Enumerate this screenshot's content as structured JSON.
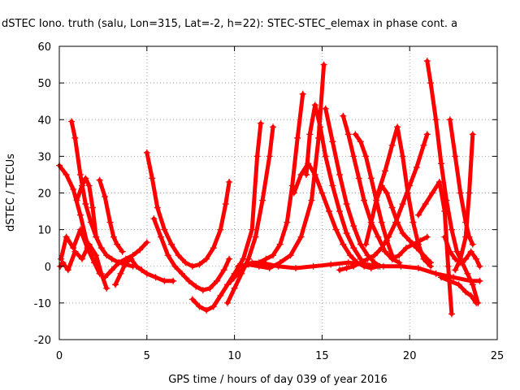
{
  "chart_data": {
    "type": "scatter",
    "title": "dSTEC Iono. truth (salu, Lon=315, Lat=-2, h=22): STEC-STEC_elemax in phase cont. a",
    "xlabel": "GPS time / hours of day 039 of year 2016",
    "ylabel": "dSTEC  / TECUs",
    "xlim": [
      0,
      25
    ],
    "ylim": [
      -20,
      60
    ],
    "x_ticks": [
      "0",
      "5",
      "10",
      "15",
      "20",
      "25"
    ],
    "y_ticks": [
      "-20",
      "-10",
      "0",
      "10",
      "20",
      "30",
      "40",
      "50",
      "60"
    ],
    "grid": true,
    "marker": "+",
    "color": "#ff0000",
    "series": [
      {
        "x": [
          0.0,
          0.4,
          0.8,
          1.2,
          1.6,
          2.0
        ],
        "y": [
          27.5,
          25,
          21,
          14,
          6,
          1
        ]
      },
      {
        "x": [
          0.05,
          0.2,
          0.5,
          0.9,
          1.3,
          1.7,
          2.1,
          2.4,
          2.7
        ],
        "y": [
          0,
          1,
          -1,
          4,
          2,
          6,
          3,
          -2,
          -6
        ]
      },
      {
        "x": [
          0.1,
          0.4,
          0.8,
          1.2,
          1.6,
          2.0,
          2.3
        ],
        "y": [
          2,
          8,
          5,
          10,
          5,
          1,
          -2
        ]
      },
      {
        "x": [
          0.7,
          0.9,
          1.2,
          1.5,
          1.8,
          2.1,
          2.4,
          2.7,
          3.0,
          3.4,
          3.8,
          4.2
        ],
        "y": [
          39.5,
          35,
          25,
          17,
          12,
          8,
          5,
          3,
          2,
          1,
          0.5,
          0
        ]
      },
      {
        "x": [
          1.0,
          1.3,
          1.5,
          1.7,
          1.9,
          2.1
        ],
        "y": [
          18,
          22,
          24,
          22,
          16,
          8
        ]
      },
      {
        "x": [
          2.3,
          2.6,
          2.9,
          3.1,
          3.3,
          3.6
        ],
        "y": [
          23.5,
          19,
          12,
          8,
          6,
          4
        ]
      },
      {
        "x": [
          2.6,
          3.0,
          3.4,
          3.8,
          4.2,
          4.6,
          5.0
        ],
        "y": [
          -3,
          -1,
          1,
          2,
          3,
          4.5,
          6.5
        ]
      },
      {
        "x": [
          3.2,
          3.5,
          3.8,
          4.1,
          4.4,
          4.7,
          5.0,
          5.5,
          6.0,
          6.5
        ],
        "y": [
          -5,
          -2,
          1,
          2,
          0,
          -1,
          -2,
          -3,
          -4,
          -4
        ]
      },
      {
        "x": [
          5.0,
          5.3,
          5.6,
          6.0,
          6.4,
          6.8,
          7.2,
          7.6,
          8.0,
          8.4,
          8.8,
          9.2,
          9.5,
          9.7
        ],
        "y": [
          31,
          24,
          16,
          10,
          6,
          3,
          1,
          0,
          0.5,
          2,
          5,
          10,
          17,
          23
        ]
      },
      {
        "x": [
          5.4,
          5.8,
          6.2,
          6.6,
          7.0,
          7.4,
          7.8,
          8.2,
          8.6,
          9.0,
          9.4,
          9.7
        ],
        "y": [
          13,
          8,
          3,
          0,
          -2,
          -4,
          -5.5,
          -6.5,
          -6,
          -4,
          -1,
          2
        ]
      },
      {
        "x": [
          7.6,
          8.0,
          8.4,
          8.8,
          9.2,
          9.6,
          10.0,
          10.5,
          11.0,
          11.3,
          11.5
        ],
        "y": [
          -9,
          -11,
          -12,
          -11,
          -8,
          -5,
          -2,
          2,
          10,
          30,
          39
        ]
      },
      {
        "x": [
          9.6,
          10.0,
          10.4,
          10.8,
          11.2,
          11.6,
          12.0,
          12.2
        ],
        "y": [
          -10,
          -6,
          -2,
          2,
          8,
          18,
          30,
          38
        ]
      },
      {
        "x": [
          9.8,
          10.2,
          10.6,
          11.0,
          11.4,
          11.8,
          12.2,
          12.6,
          13.0,
          13.3,
          13.6,
          13.9
        ],
        "y": [
          -4,
          -2,
          0,
          1,
          1,
          2,
          3,
          6,
          12,
          22,
          35,
          47
        ]
      },
      {
        "x": [
          10.2,
          10.8,
          11.4,
          12.0,
          12.6,
          13.2,
          13.8,
          14.4,
          14.8,
          15.1
        ],
        "y": [
          0,
          0.5,
          0,
          -0.5,
          1,
          3,
          8,
          18,
          35,
          55
        ]
      },
      {
        "x": [
          11.5,
          12.5,
          13.5,
          14.5,
          15.5,
          16.5,
          17.5,
          18.5,
          19.5,
          20.5,
          21.5,
          22.5,
          23.5,
          24.0
        ],
        "y": [
          1,
          0,
          -0.5,
          0,
          0.5,
          1,
          0.5,
          0,
          0,
          -0.5,
          -2,
          -3,
          -4,
          -4
        ]
      },
      {
        "x": [
          13.4,
          13.8,
          14.2,
          14.6,
          15.0,
          15.4,
          15.8,
          16.2,
          16.6,
          17.0,
          17.4,
          17.8,
          18.2
        ],
        "y": [
          20,
          25,
          28,
          25,
          20,
          15,
          10,
          6,
          3,
          1,
          0,
          -0.5,
          0
        ]
      },
      {
        "x": [
          14.1,
          14.3,
          14.6,
          14.9,
          15.2,
          15.6,
          16.0,
          16.4,
          16.8,
          17.2
        ],
        "y": [
          25,
          36,
          44,
          38,
          30,
          22,
          15,
          9,
          5,
          2
        ]
      },
      {
        "x": [
          15.2,
          15.6,
          16.0,
          16.4,
          16.8,
          17.2,
          17.6,
          18.0,
          18.3
        ],
        "y": [
          43,
          34,
          25,
          17,
          11,
          6,
          3,
          1,
          0
        ]
      },
      {
        "x": [
          16.2,
          16.5,
          16.8,
          17.1,
          17.4,
          17.8,
          18.2,
          18.6,
          19.0,
          19.4
        ],
        "y": [
          41,
          36,
          30,
          24,
          18,
          12,
          8,
          4,
          2,
          1
        ]
      },
      {
        "x": [
          16.0,
          16.4,
          16.8,
          17.2,
          17.6,
          18.0,
          18.4,
          18.8,
          19.2,
          19.6,
          20.0,
          20.4,
          20.8,
          21.0
        ],
        "y": [
          -1,
          -0.5,
          0,
          1,
          2,
          3,
          5,
          8,
          12,
          17,
          22,
          27,
          33,
          36
        ]
      },
      {
        "x": [
          16.9,
          17.2,
          17.5,
          17.8,
          18.1,
          18.4,
          18.7,
          19.0
        ],
        "y": [
          36,
          34,
          30,
          24,
          18,
          12,
          7,
          3
        ]
      },
      {
        "x": [
          18.2,
          18.6,
          19.0,
          19.3,
          19.6,
          19.9,
          20.2,
          20.5,
          20.8,
          21.2
        ],
        "y": [
          20,
          26,
          33,
          38,
          30,
          20,
          12,
          6,
          2,
          0
        ]
      },
      {
        "x": [
          17.5,
          17.8,
          18.1,
          18.4,
          18.7,
          19.0,
          19.3,
          19.6,
          20.0,
          20.4,
          20.8,
          21.2
        ],
        "y": [
          6,
          12,
          18,
          22,
          20,
          16,
          12,
          9,
          7,
          5,
          3,
          1
        ]
      },
      {
        "x": [
          19.0,
          19.4,
          19.8,
          20.2,
          20.6,
          21.0
        ],
        "y": [
          2,
          3,
          5,
          6,
          7,
          8
        ]
      },
      {
        "x": [
          21.0,
          21.2,
          21.5,
          21.8,
          22.1,
          22.4,
          22.7,
          23.0,
          23.3,
          23.6,
          23.9
        ],
        "y": [
          56,
          50,
          40,
          28,
          18,
          10,
          4,
          1,
          -2,
          -5,
          -10
        ]
      },
      {
        "x": [
          20.5,
          20.9,
          21.3,
          21.7,
          22.0,
          22.2,
          22.4
        ],
        "y": [
          14,
          17,
          20,
          23,
          15,
          0,
          -13
        ]
      },
      {
        "x": [
          21.8,
          22.3,
          22.8,
          23.2,
          23.5,
          23.8
        ],
        "y": [
          -3,
          -4,
          -5,
          -7,
          -8,
          -10
        ]
      },
      {
        "x": [
          22.3,
          22.6,
          22.9,
          23.2,
          23.4,
          23.6
        ],
        "y": [
          40,
          30,
          20,
          12,
          8,
          6
        ]
      },
      {
        "x": [
          22.6,
          22.9,
          23.2,
          23.4,
          23.6
        ],
        "y": [
          -1,
          2,
          8,
          20,
          36
        ]
      },
      {
        "x": [
          22.0,
          22.3,
          22.6,
          22.9,
          23.2,
          23.5,
          23.8,
          24.0
        ],
        "y": [
          8,
          4,
          2,
          1,
          2,
          4,
          2,
          0
        ]
      }
    ]
  }
}
